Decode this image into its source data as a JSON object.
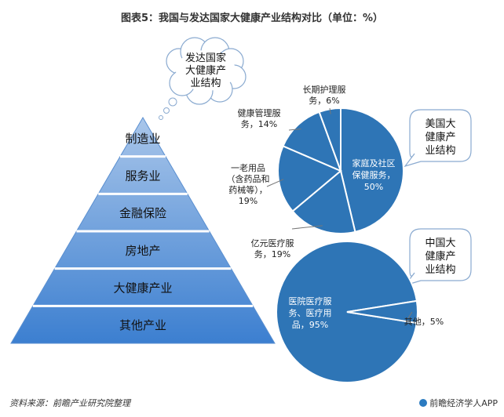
{
  "title": "图表5：我国与发达国家大健康产业结构对比（单位：%）",
  "source": "资料来源：前瞻产业研究院整理",
  "brand": "前瞻经济学人APP",
  "cloud_labels": {
    "developed": [
      "发达国家",
      "大健康产",
      "业结构"
    ],
    "usa": [
      "美国大",
      "健康产",
      "业结构"
    ],
    "china": [
      "中国大",
      "健康产",
      "业结构"
    ]
  },
  "colors": {
    "fill": "#2e75b6",
    "edge": "#ffffff",
    "text": "#ffffff",
    "pyramid_top": "#a9c6ea",
    "pyramid_bottom": "#3c7fd0"
  },
  "chart_data": [
    {
      "type": "pyramid",
      "levels": [
        "制造业",
        "服务业",
        "金融保险",
        "房地产",
        "大健康产业",
        "其他产业"
      ]
    },
    {
      "type": "pie",
      "name": "美国大健康产业结构",
      "slices": [
        {
          "label": [
            "家庭及社区",
            "保健服务，",
            "50%"
          ],
          "value": 50
        },
        {
          "label": [
            "亿元医疗服",
            "务，19%"
          ],
          "value": 19
        },
        {
          "label": [
            "一老用品",
            "（含药品和",
            "药械等），",
            "19%"
          ],
          "value": 19
        },
        {
          "label": [
            "健康管理服",
            "务，14%"
          ],
          "value": 14
        },
        {
          "label": [
            "长期护理服",
            "务，6%"
          ],
          "value": 6
        }
      ]
    },
    {
      "type": "pie",
      "name": "中国大健康产业结构",
      "slices": [
        {
          "label": [
            "医院医疗服",
            "务、医疗用",
            "品，95%"
          ],
          "value": 95
        },
        {
          "label": [
            "其他，5%"
          ],
          "value": 5
        }
      ]
    }
  ]
}
